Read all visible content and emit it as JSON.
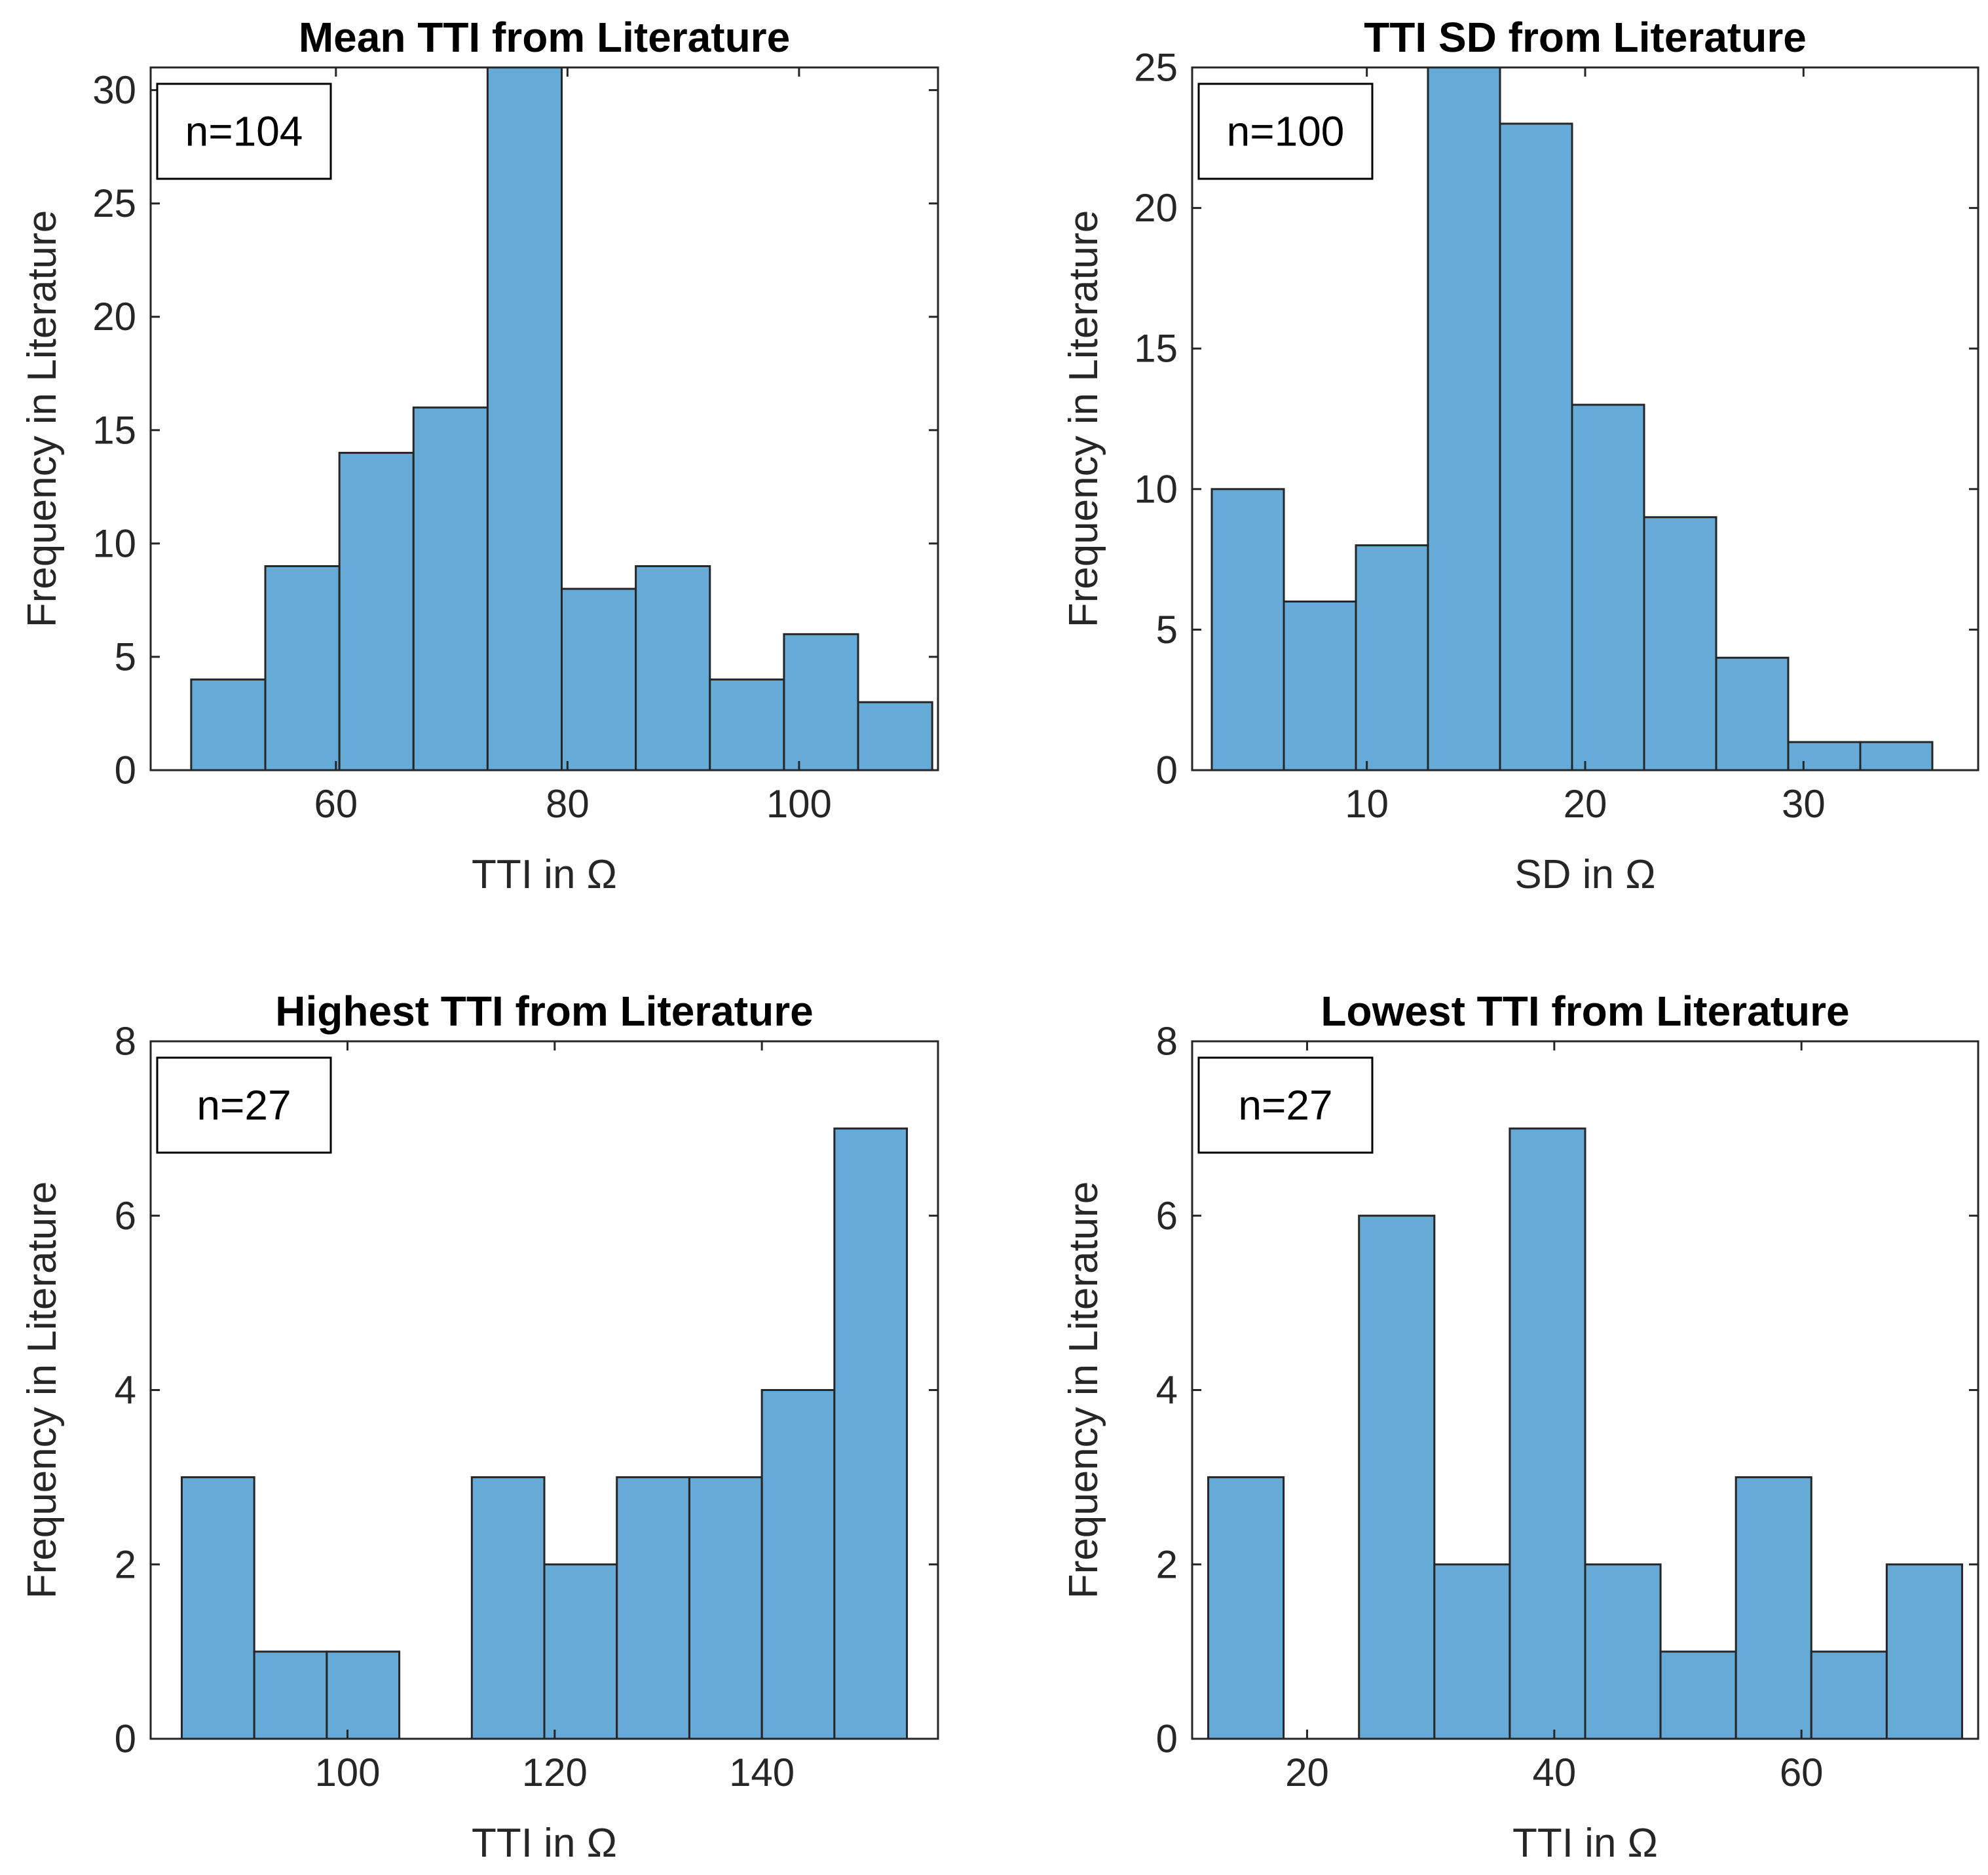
{
  "figure": {
    "bar_color": "#66AAD7",
    "bar_edge_color": "#262626",
    "axis_color": "#262626"
  },
  "chart_data": [
    {
      "type": "bar",
      "title": "Mean TTI from Literature",
      "xlabel": "TTI in Ω",
      "ylabel": "Frequency in Literature",
      "annotation": "n=104",
      "bin_edges": [
        47.5,
        53.9,
        60.3,
        66.7,
        73.1,
        79.5,
        85.9,
        92.3,
        98.7,
        105.1,
        111.5
      ],
      "values": [
        4,
        9,
        14,
        16,
        31,
        8,
        9,
        4,
        6,
        3
      ],
      "xlim": [
        44,
        112
      ],
      "ylim": [
        0,
        31
      ],
      "xticks": [
        60,
        80,
        100
      ],
      "yticks": [
        0,
        5,
        10,
        15,
        20,
        25,
        30
      ]
    },
    {
      "type": "bar",
      "title": "TTI SD from Literature",
      "xlabel": "SD in Ω",
      "ylabel": "Frequency in Literature",
      "annotation": "n=100",
      "bin_edges": [
        2.9,
        6.2,
        9.5,
        12.8,
        16.1,
        19.4,
        22.7,
        26.0,
        29.3,
        32.6,
        35.9
      ],
      "values": [
        10,
        6,
        8,
        25,
        23,
        13,
        9,
        4,
        1,
        1
      ],
      "xlim": [
        2,
        38
      ],
      "ylim": [
        0,
        25
      ],
      "xticks": [
        10,
        20,
        30
      ],
      "yticks": [
        0,
        5,
        10,
        15,
        20,
        25
      ]
    },
    {
      "type": "bar",
      "title": "Highest TTI from Literature",
      "xlabel": "TTI in Ω",
      "ylabel": "Frequency in Literature",
      "annotation": "n=27",
      "bin_edges": [
        84,
        91,
        98,
        105,
        112,
        119,
        126,
        133,
        140,
        147,
        154
      ],
      "values": [
        3,
        1,
        1,
        0,
        3,
        2,
        3,
        3,
        4,
        7
      ],
      "xlim": [
        81,
        157
      ],
      "ylim": [
        0,
        8
      ],
      "xticks": [
        100,
        120,
        140
      ],
      "yticks": [
        0,
        2,
        4,
        6,
        8
      ]
    },
    {
      "type": "bar",
      "title": "Lowest TTI from Literature",
      "xlabel": "TTI in Ω",
      "ylabel": "Frequency in Literature",
      "annotation": "n=27",
      "bin_edges": [
        12,
        18.1,
        24.2,
        30.3,
        36.4,
        42.5,
        48.6,
        54.7,
        60.8,
        66.9,
        73
      ],
      "values": [
        3,
        0,
        6,
        2,
        7,
        2,
        1,
        3,
        1,
        2
      ],
      "xlim": [
        10.7,
        74.3
      ],
      "ylim": [
        0,
        8
      ],
      "xticks": [
        20,
        40,
        60
      ],
      "yticks": [
        0,
        2,
        4,
        6,
        8
      ]
    }
  ]
}
